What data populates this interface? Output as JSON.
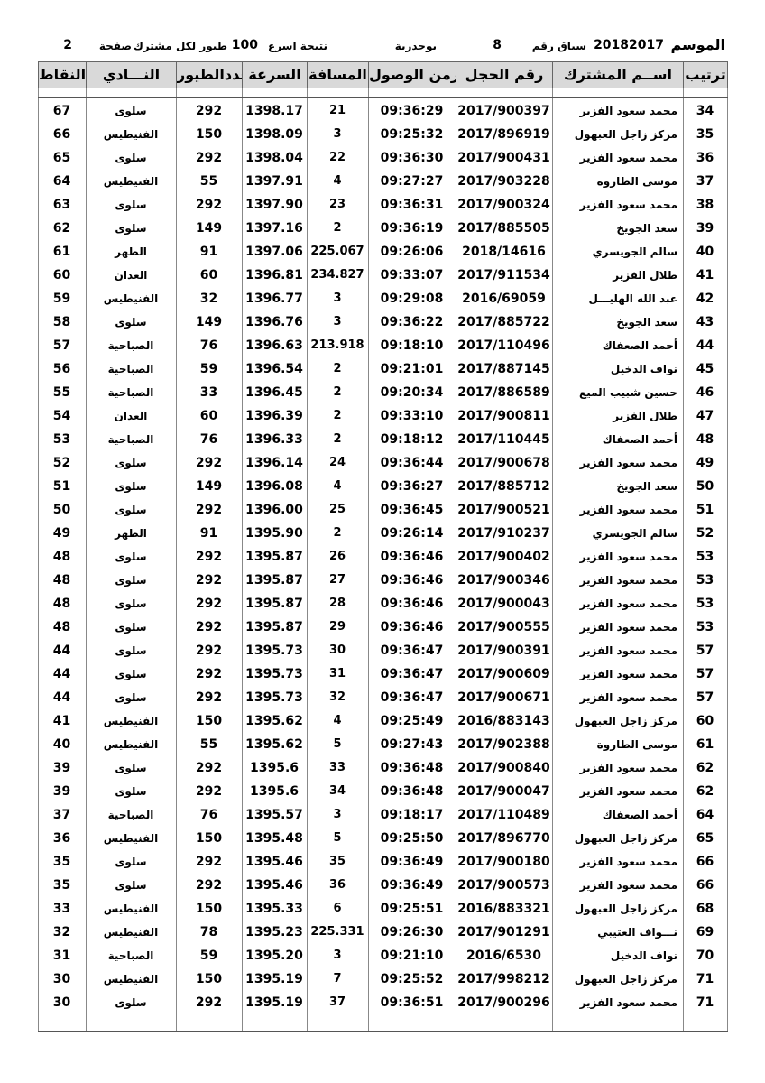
{
  "header": {
    "season_label": "الموسم",
    "season": "20182017",
    "race_label": "سباق رقم",
    "race": "8",
    "location": "بوحدرية",
    "result_label": "نتيجة اسرع",
    "count": "100",
    "per_label": "طيور لكل مشترك",
    "page_label": "صفحة",
    "page": "2"
  },
  "table": {
    "columns": [
      "ترتيب",
      "اســم المشترك",
      "رقم الحجل",
      "زمن الوصول",
      "المسافة",
      "السرعة",
      "عددالطيور",
      "النـــادي",
      "النقاط"
    ],
    "rows": [
      [
        "34",
        "محمد سعود الفزير",
        "2017/900397",
        "09:36:29",
        "21",
        "1398.17",
        "292",
        "سلوى",
        "67"
      ],
      [
        "35",
        "مركز زاجل العبهول",
        "2017/896919",
        "09:25:32",
        "3",
        "1398.09",
        "150",
        "الفنيطيس",
        "66"
      ],
      [
        "36",
        "محمد سعود الفزير",
        "2017/900431",
        "09:36:30",
        "22",
        "1398.04",
        "292",
        "سلوى",
        "65"
      ],
      [
        "37",
        "موسى الطاروة",
        "2017/903228",
        "09:27:27",
        "4",
        "1397.91",
        "55",
        "الفنيطيس",
        "64"
      ],
      [
        "38",
        "محمد سعود الفزير",
        "2017/900324",
        "09:36:31",
        "23",
        "1397.90",
        "292",
        "سلوى",
        "63"
      ],
      [
        "39",
        "سعد الجويخ",
        "2017/885505",
        "09:36:19",
        "2",
        "1397.16",
        "149",
        "سلوى",
        "62"
      ],
      [
        "40",
        "سالم الجويسري",
        "2018/14616",
        "09:26:06",
        "225.067",
        "1397.06",
        "91",
        "الظهر",
        "61"
      ],
      [
        "41",
        "طلال الفزير",
        "2017/911534",
        "09:33:07",
        "234.827",
        "1396.81",
        "60",
        "العدان",
        "60"
      ],
      [
        "42",
        "عبد الله الهليـــل",
        "2016/69059",
        "09:29:08",
        "3",
        "1396.77",
        "32",
        "الفنيطيس",
        "59"
      ],
      [
        "43",
        "سعد الجويخ",
        "2017/885722",
        "09:36:22",
        "3",
        "1396.76",
        "149",
        "سلوى",
        "58"
      ],
      [
        "44",
        "أحمد الصعفاك",
        "2017/110496",
        "09:18:10",
        "213.918",
        "1396.63",
        "76",
        "الصباحية",
        "57"
      ],
      [
        "45",
        "نواف الدخيل",
        "2017/887145",
        "09:21:01",
        "2",
        "1396.54",
        "59",
        "الصباحية",
        "56"
      ],
      [
        "46",
        "حسين شبيب الميع",
        "2017/886589",
        "09:20:34",
        "2",
        "1396.45",
        "33",
        "الصباحية",
        "55"
      ],
      [
        "47",
        "طلال الفزير",
        "2017/900811",
        "09:33:10",
        "2",
        "1396.39",
        "60",
        "العدان",
        "54"
      ],
      [
        "48",
        "أحمد الصعفاك",
        "2017/110445",
        "09:18:12",
        "2",
        "1396.33",
        "76",
        "الصباحية",
        "53"
      ],
      [
        "49",
        "محمد سعود الفزير",
        "2017/900678",
        "09:36:44",
        "24",
        "1396.14",
        "292",
        "سلوى",
        "52"
      ],
      [
        "50",
        "سعد الجويخ",
        "2017/885712",
        "09:36:27",
        "4",
        "1396.08",
        "149",
        "سلوى",
        "51"
      ],
      [
        "51",
        "محمد سعود الفزير",
        "2017/900521",
        "09:36:45",
        "25",
        "1396.00",
        "292",
        "سلوى",
        "50"
      ],
      [
        "52",
        "سالم الجويسري",
        "2017/910237",
        "09:26:14",
        "2",
        "1395.90",
        "91",
        "الظهر",
        "49"
      ],
      [
        "53",
        "محمد سعود الفزير",
        "2017/900402",
        "09:36:46",
        "26",
        "1395.87",
        "292",
        "سلوى",
        "48"
      ],
      [
        "53",
        "محمد سعود الفزير",
        "2017/900346",
        "09:36:46",
        "27",
        "1395.87",
        "292",
        "سلوى",
        "48"
      ],
      [
        "53",
        "محمد سعود الفزير",
        "2017/900043",
        "09:36:46",
        "28",
        "1395.87",
        "292",
        "سلوى",
        "48"
      ],
      [
        "53",
        "محمد سعود الفزير",
        "2017/900555",
        "09:36:46",
        "29",
        "1395.87",
        "292",
        "سلوى",
        "48"
      ],
      [
        "57",
        "محمد سعود الفزير",
        "2017/900391",
        "09:36:47",
        "30",
        "1395.73",
        "292",
        "سلوى",
        "44"
      ],
      [
        "57",
        "محمد سعود الفزير",
        "2017/900609",
        "09:36:47",
        "31",
        "1395.73",
        "292",
        "سلوى",
        "44"
      ],
      [
        "57",
        "محمد سعود الفزير",
        "2017/900671",
        "09:36:47",
        "32",
        "1395.73",
        "292",
        "سلوى",
        "44"
      ],
      [
        "60",
        "مركز زاجل العبهول",
        "2016/883143",
        "09:25:49",
        "4",
        "1395.62",
        "150",
        "الفنيطيس",
        "41"
      ],
      [
        "61",
        "موسى الطاروة",
        "2017/902388",
        "09:27:43",
        "5",
        "1395.62",
        "55",
        "الفنيطيس",
        "40"
      ],
      [
        "62",
        "محمد سعود الفزير",
        "2017/900840",
        "09:36:48",
        "33",
        "1395.6",
        "292",
        "سلوى",
        "39"
      ],
      [
        "62",
        "محمد سعود الفزير",
        "2017/900047",
        "09:36:48",
        "34",
        "1395.6",
        "292",
        "سلوى",
        "39"
      ],
      [
        "64",
        "أحمد الصعفاك",
        "2017/110489",
        "09:18:17",
        "3",
        "1395.57",
        "76",
        "الصباحية",
        "37"
      ],
      [
        "65",
        "مركز زاجل العبهول",
        "2017/896770",
        "09:25:50",
        "5",
        "1395.48",
        "150",
        "الفنيطيس",
        "36"
      ],
      [
        "66",
        "محمد سعود الفزير",
        "2017/900180",
        "09:36:49",
        "35",
        "1395.46",
        "292",
        "سلوى",
        "35"
      ],
      [
        "66",
        "محمد سعود الفزير",
        "2017/900573",
        "09:36:49",
        "36",
        "1395.46",
        "292",
        "سلوى",
        "35"
      ],
      [
        "68",
        "مركز زاجل العبهول",
        "2016/883321",
        "09:25:51",
        "6",
        "1395.33",
        "150",
        "الفنيطيس",
        "33"
      ],
      [
        "69",
        "نـــواف العتيبي",
        "2017/901291",
        "09:26:30",
        "225.331",
        "1395.23",
        "78",
        "الفنيطيس",
        "32"
      ],
      [
        "70",
        "نواف الدخيل",
        "2016/6530",
        "09:21:10",
        "3",
        "1395.20",
        "59",
        "الصباحية",
        "31"
      ],
      [
        "71",
        "مركز زاجل العبهول",
        "2017/998212",
        "09:25:52",
        "7",
        "1395.19",
        "150",
        "الفنيطيس",
        "30"
      ],
      [
        "71",
        "محمد سعود الفزير",
        "2017/900296",
        "09:36:51",
        "37",
        "1395.19",
        "292",
        "سلوى",
        "30"
      ]
    ]
  }
}
